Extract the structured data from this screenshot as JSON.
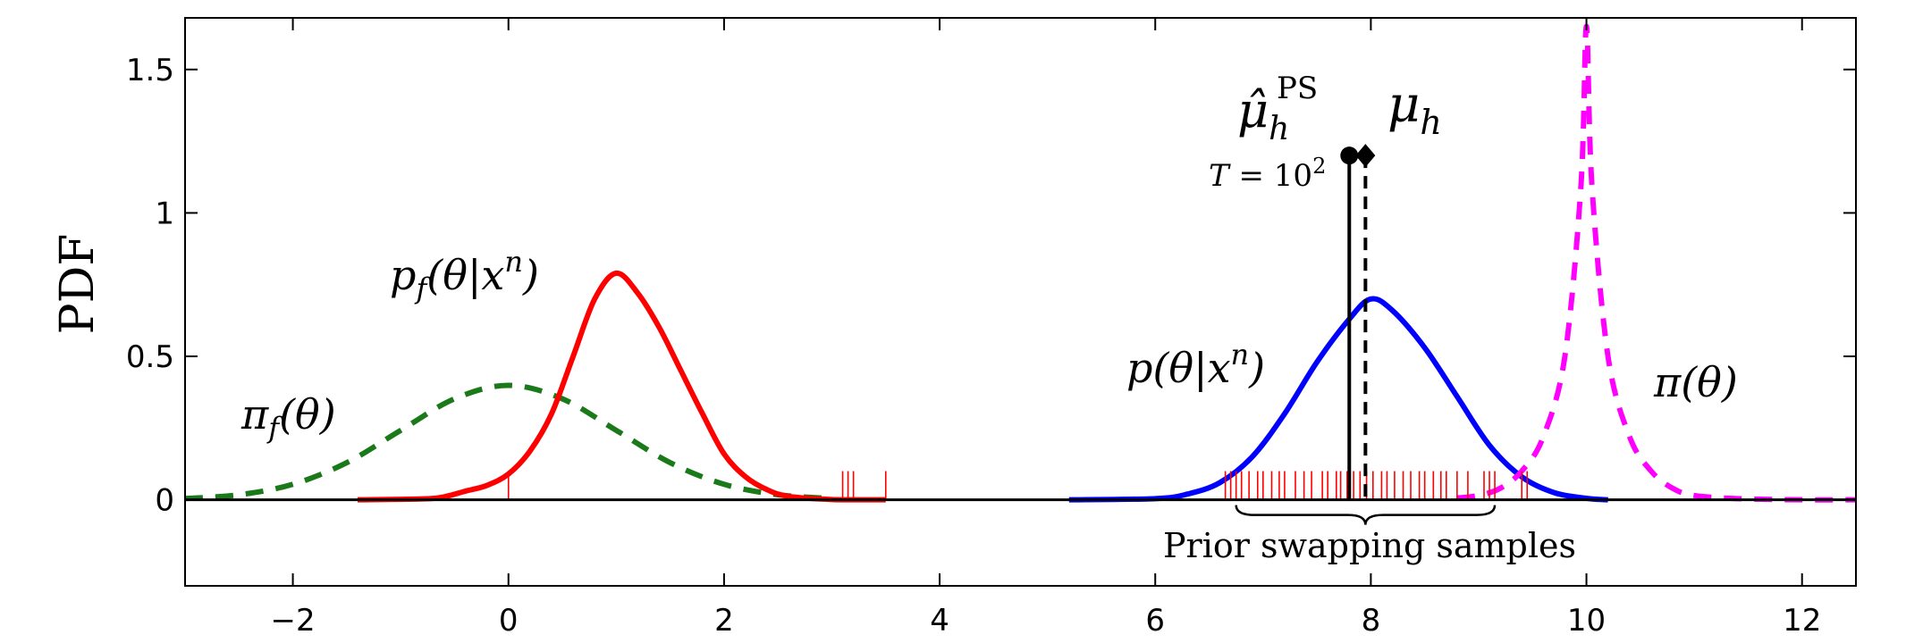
{
  "chart_data": {
    "type": "line",
    "ylabel": "PDF",
    "xlabel": "",
    "xlim": [
      -3,
      12.5
    ],
    "ylim": [
      -0.3,
      1.68
    ],
    "x_ticks": [
      -2,
      0,
      2,
      4,
      6,
      8,
      10,
      12
    ],
    "x_tick_labels": [
      "−2",
      "0",
      "2",
      "4",
      "6",
      "8",
      "10",
      "12"
    ],
    "y_ticks": [
      0,
      0.5,
      1,
      1.5
    ],
    "y_tick_labels": [
      "0",
      "0.5",
      "1",
      "1.5"
    ],
    "grid": false,
    "series": [
      {
        "name": "π_f(θ)",
        "color": "#1a7a1a",
        "style": "dashed",
        "x": [
          -3.0,
          -2.5,
          -2.0,
          -1.5,
          -1.0,
          -0.5,
          0.0,
          0.5,
          1.0,
          1.5,
          2.0,
          2.5,
          3.0
        ],
        "y": [
          0.0044,
          0.0175,
          0.054,
          0.1295,
          0.242,
          0.352,
          0.399,
          0.352,
          0.242,
          0.1295,
          0.054,
          0.0175,
          0.0044
        ]
      },
      {
        "name": "p_f(θ|x^n)",
        "color": "#ff0000",
        "style": "solid",
        "x": [
          -1.4,
          -0.8,
          -0.6,
          -0.4,
          -0.2,
          0.0,
          0.2,
          0.4,
          0.6,
          0.8,
          1.0,
          1.2,
          1.4,
          1.6,
          1.8,
          2.0,
          2.2,
          2.4,
          2.6,
          3.0,
          3.5
        ],
        "y": [
          0.0,
          0.003,
          0.01,
          0.03,
          0.05,
          0.09,
          0.17,
          0.3,
          0.5,
          0.7,
          0.79,
          0.72,
          0.6,
          0.45,
          0.3,
          0.16,
          0.08,
          0.035,
          0.012,
          0.001,
          0.0
        ]
      },
      {
        "name": "p(θ|x^n)",
        "color": "#0000ff",
        "style": "solid",
        "x": [
          5.2,
          6.0,
          6.3,
          6.6,
          6.9,
          7.2,
          7.5,
          7.8,
          8.0,
          8.2,
          8.5,
          8.8,
          9.1,
          9.4,
          9.7,
          10.0,
          10.2
        ],
        "y": [
          0.0,
          0.004,
          0.02,
          0.06,
          0.15,
          0.3,
          0.48,
          0.63,
          0.7,
          0.66,
          0.53,
          0.36,
          0.19,
          0.08,
          0.025,
          0.005,
          0.0
        ]
      },
      {
        "name": "π(θ)",
        "color": "#ff00ff",
        "style": "dashed",
        "x": [
          8.8,
          9.0,
          9.2,
          9.4,
          9.6,
          9.8,
          9.95,
          10.0,
          10.05,
          10.2,
          10.4,
          10.6,
          10.8,
          11.0,
          11.4,
          12.0,
          12.5
        ],
        "y": [
          0.006,
          0.015,
          0.04,
          0.1,
          0.22,
          0.5,
          1.1,
          1.65,
          1.1,
          0.5,
          0.22,
          0.1,
          0.04,
          0.015,
          0.004,
          0.0,
          0.0
        ]
      }
    ],
    "rug": {
      "color": "#ff0000",
      "height": 0.1,
      "x": [
        0.0,
        3.1,
        3.15,
        3.2,
        3.5,
        6.65,
        6.7,
        6.75,
        6.8,
        6.87,
        6.95,
        7.0,
        7.08,
        7.15,
        7.2,
        7.3,
        7.38,
        7.45,
        7.55,
        7.6,
        7.68,
        7.72,
        7.78,
        7.84,
        7.9,
        7.96,
        8.02,
        8.1,
        8.15,
        8.22,
        8.3,
        8.37,
        8.45,
        8.5,
        8.58,
        8.65,
        8.7,
        8.8,
        8.9,
        9.05,
        9.1,
        9.15,
        9.4,
        9.45
      ]
    },
    "markers": [
      {
        "name": "mu-hat-ps",
        "x": 7.8,
        "y": 1.2,
        "shape": "circle",
        "line": "solid"
      },
      {
        "name": "mu-h",
        "x": 7.95,
        "y": 1.2,
        "shape": "diamond",
        "line": "dashed"
      }
    ]
  },
  "labels": {
    "ylabel": "PDF",
    "pi_f": "π",
    "pi_f_sub": "f",
    "pi_f_arg": "(θ)",
    "p_f": "p",
    "p_f_sub": "f",
    "p_f_arg": "(θ|x",
    "p_f_sup": "n",
    "p_f_close": ")",
    "p": "p(θ|x",
    "p_sup": "n",
    "p_close": ")",
    "pi": "π(θ)",
    "mu_hat": "μ̂",
    "mu_hat_sub": "h",
    "mu_hat_sup": "PS",
    "mu": "μ",
    "mu_sub": "h",
    "t_label": "T",
    "t_eq": " = 10",
    "t_sup": "2",
    "prior_swapping": "Prior swapping samples"
  }
}
